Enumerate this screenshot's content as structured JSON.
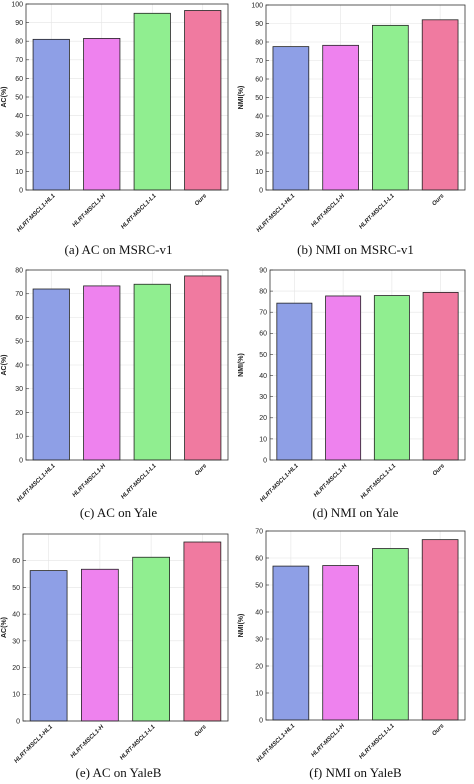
{
  "chart_data": [
    {
      "id": "a",
      "type": "bar",
      "categories": [
        "HLRT-MSCL1-HL1",
        "HLRT-MSCL1-H",
        "HLRT-MSCL1-L1",
        "Ours"
      ],
      "values": [
        81,
        81.5,
        95,
        96.5
      ],
      "ylabel": "AC(%)",
      "ylim": [
        0,
        100
      ],
      "yticks": [
        0,
        10,
        20,
        30,
        40,
        50,
        60,
        70,
        80,
        90,
        100
      ],
      "colors": [
        "#8e9fe6",
        "#ee82ee",
        "#90ee90",
        "#f07aa0"
      ],
      "grid": true,
      "caption": "(a) AC on MSRC-v1"
    },
    {
      "id": "b",
      "type": "bar",
      "categories": [
        "HLRT-MSCL1-HL1",
        "HLRT-MSCL1-H",
        "HLRT-MSCL1-L1",
        "Ours"
      ],
      "values": [
        77.5,
        78.2,
        89,
        92
      ],
      "ylabel": "NMI(%)",
      "ylim": [
        0,
        100
      ],
      "yticks": [
        0,
        10,
        20,
        30,
        40,
        50,
        60,
        70,
        80,
        90,
        100
      ],
      "colors": [
        "#8e9fe6",
        "#ee82ee",
        "#90ee90",
        "#f07aa0"
      ],
      "grid": true,
      "caption": "(b) NMI on MSRC-v1"
    },
    {
      "id": "c",
      "type": "bar",
      "categories": [
        "HLRT-MSCL1-HL1",
        "HLRT-MSCL1-H",
        "HLRT-MSCL1-L1",
        "Ours"
      ],
      "values": [
        72,
        73.3,
        74,
        77.5
      ],
      "ylabel": "AC(%)",
      "ylim": [
        0,
        80
      ],
      "yticks": [
        0,
        10,
        20,
        30,
        40,
        50,
        60,
        70,
        80
      ],
      "colors": [
        "#8e9fe6",
        "#ee82ee",
        "#90ee90",
        "#f07aa0"
      ],
      "grid": true,
      "caption": "(c) AC on Yale"
    },
    {
      "id": "d",
      "type": "bar",
      "categories": [
        "HLRT-MSCL1-HL1",
        "HLRT-MSCL1-H",
        "HLRT-MSCL1-L1",
        "Ours"
      ],
      "values": [
        74.3,
        77.7,
        77.9,
        79.4
      ],
      "ylabel": "NMI(%)",
      "ylim": [
        0,
        90
      ],
      "yticks": [
        0,
        10,
        20,
        30,
        40,
        50,
        60,
        70,
        80,
        90
      ],
      "colors": [
        "#8e9fe6",
        "#ee82ee",
        "#90ee90",
        "#f07aa0"
      ],
      "grid": true,
      "caption": "(d) NMI on Yale"
    },
    {
      "id": "e",
      "type": "bar",
      "categories": [
        "HLRT-MSCL1-HL1",
        "HLRT-MSCL1-H",
        "HLRT-MSCL1-L1",
        "Ours"
      ],
      "values": [
        56.3,
        56.8,
        61.3,
        67
      ],
      "ylabel": "AC(%)",
      "ylim": [
        0,
        70
      ],
      "yticks": [
        0,
        10,
        20,
        30,
        40,
        50,
        60
      ],
      "colors": [
        "#8e9fe6",
        "#ee82ee",
        "#90ee90",
        "#f07aa0"
      ],
      "grid": true,
      "caption": "(e) AC on YaleB"
    },
    {
      "id": "f",
      "type": "bar",
      "categories": [
        "HLRT-MSCL1-HL1",
        "HLRT-MSCL1-H",
        "HLRT-MSCL1-L1",
        "Ours"
      ],
      "values": [
        57,
        57.2,
        63.5,
        66.8
      ],
      "ylabel": "NMI(%)",
      "ylim": [
        0,
        70
      ],
      "yticks": [
        0,
        10,
        20,
        30,
        40,
        50,
        60,
        70
      ],
      "colors": [
        "#8e9fe6",
        "#ee82ee",
        "#90ee90",
        "#f07aa0"
      ],
      "grid": true,
      "caption": "(f) NMI on YaleB"
    }
  ]
}
